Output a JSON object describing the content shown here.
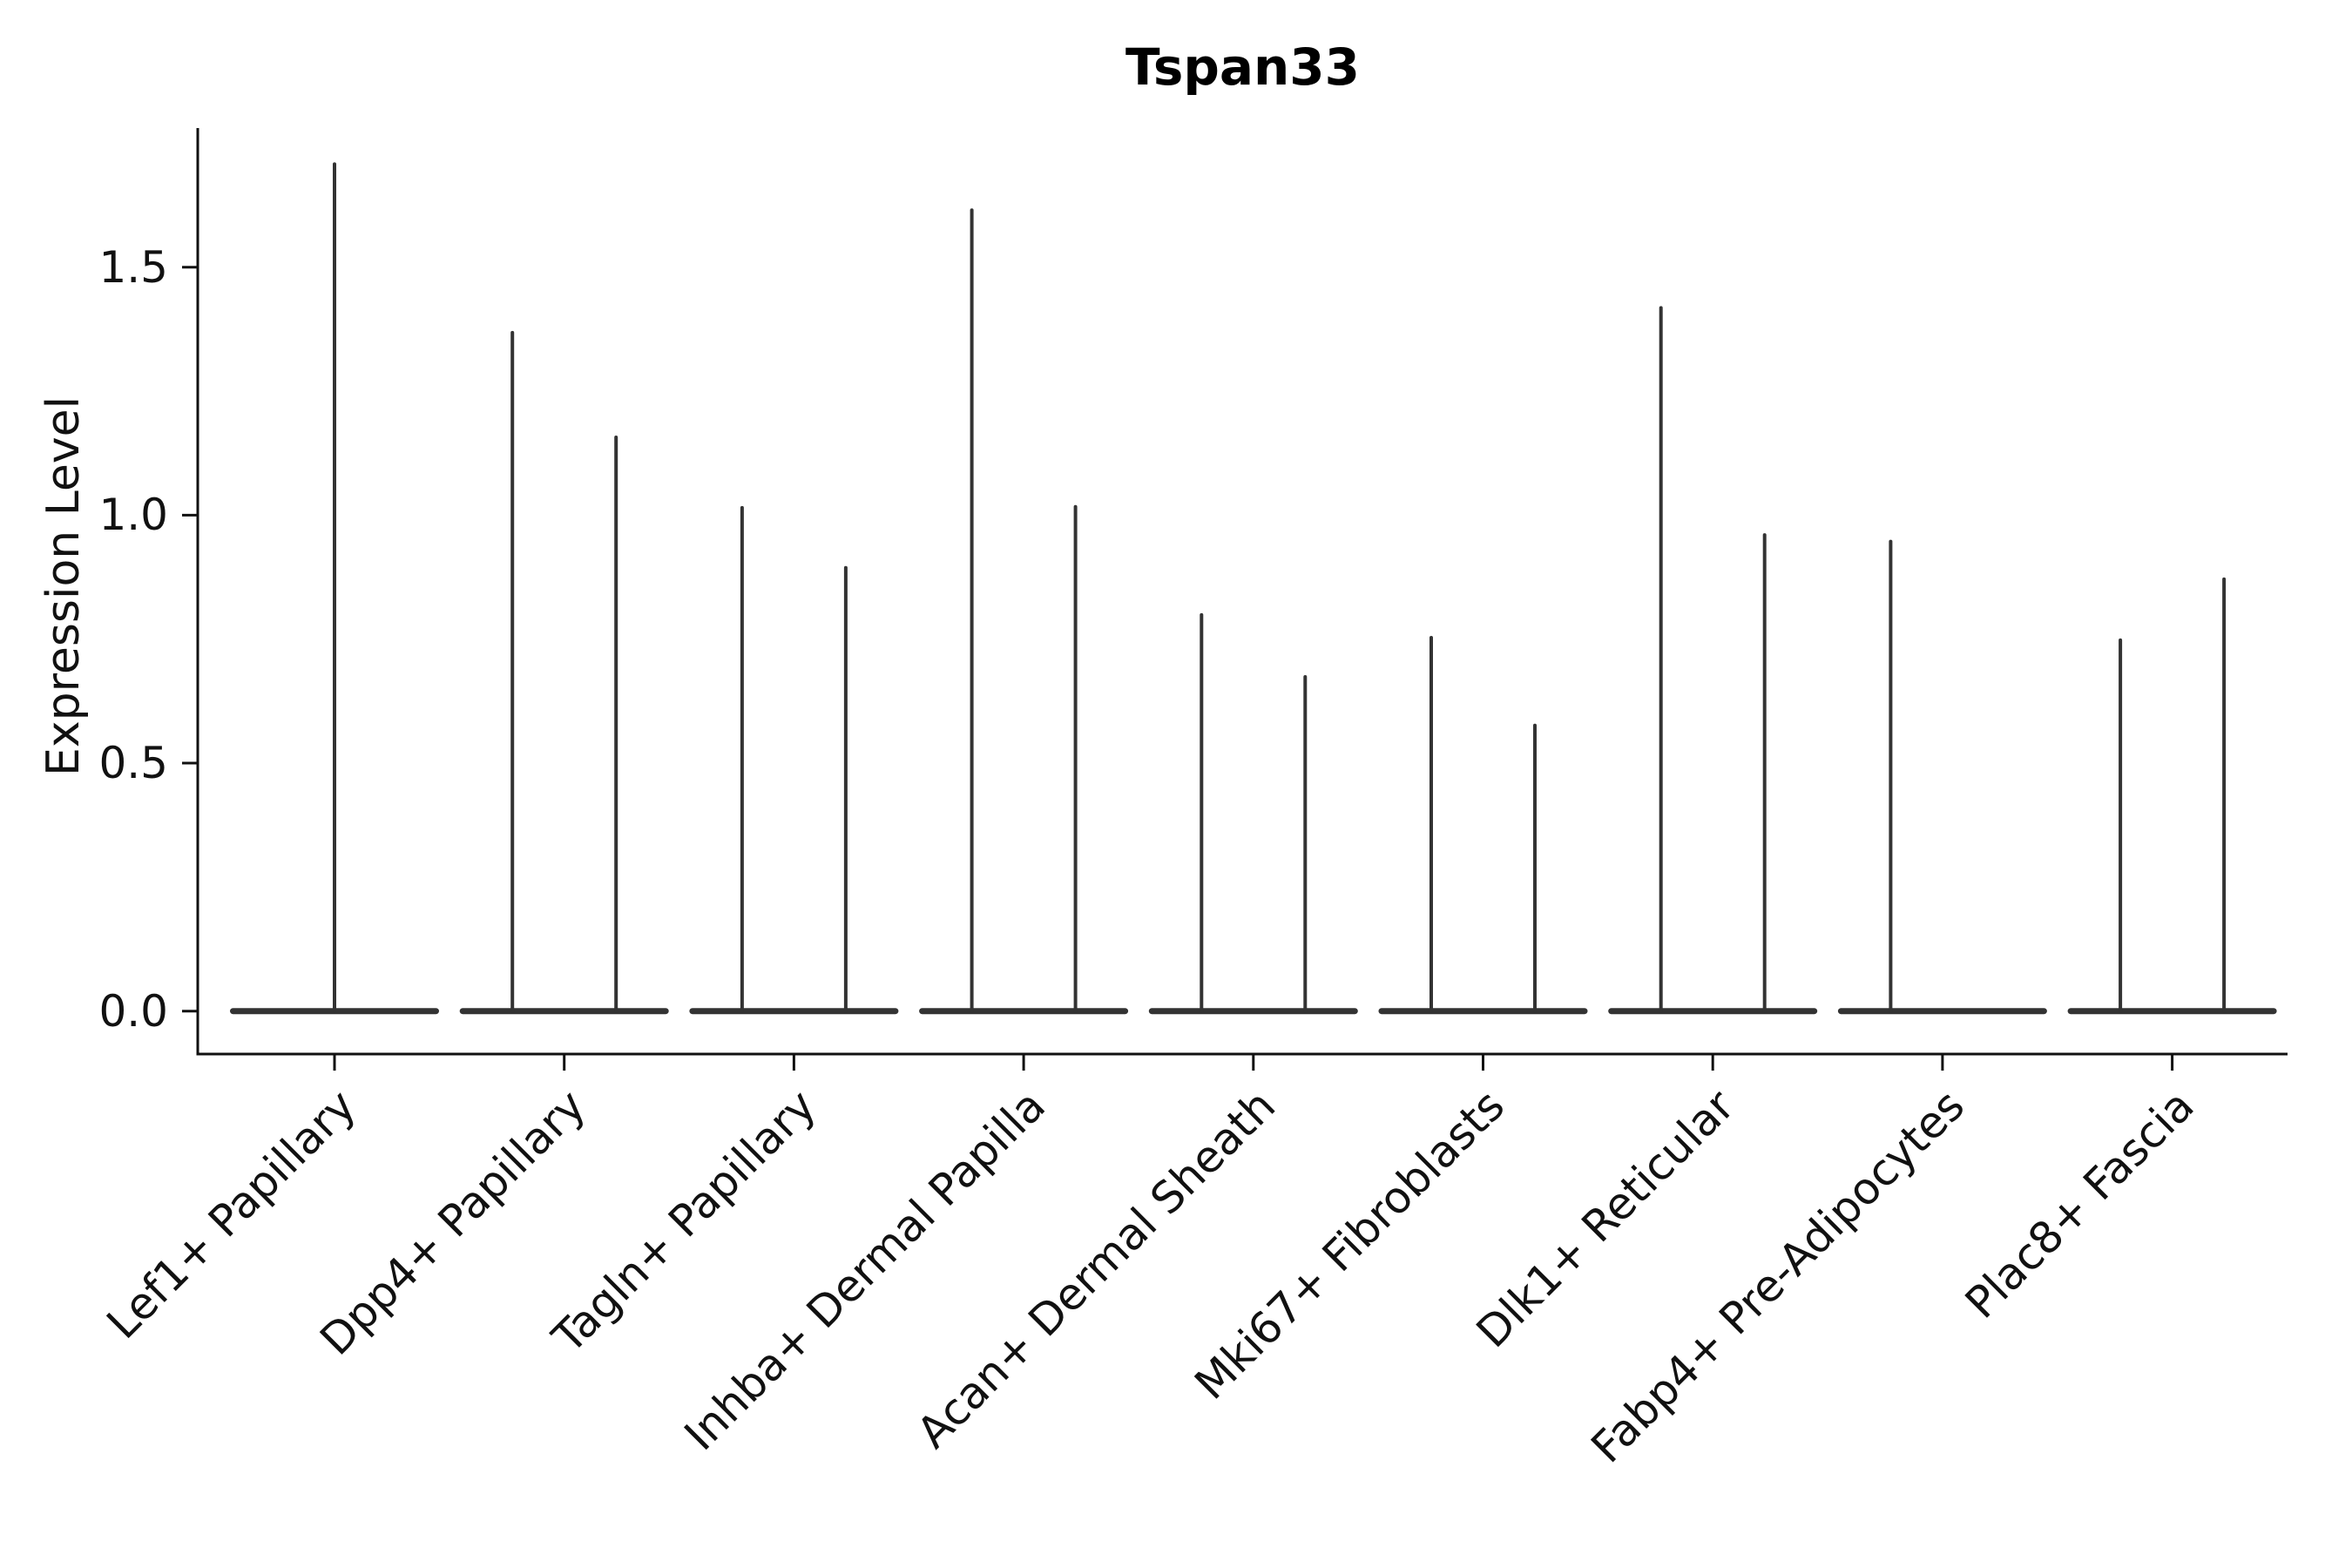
{
  "figure": {
    "title": "Tspan33",
    "background_color": "#ffffff"
  },
  "chart_data": {
    "type": "violin",
    "title": "Tspan33",
    "xlabel": "",
    "ylabel": "Expression Level",
    "ytick_labels": [
      "0.0",
      "0.5",
      "1.0",
      "1.5"
    ],
    "ylim": [
      -0.09,
      1.78
    ],
    "grid": "off",
    "legend": "none",
    "x_tick_rotation_deg": 45,
    "colors": {
      "violin": "#333333",
      "axis": "#111111",
      "text": "#111111",
      "title": "#000000"
    },
    "description": "Sparse expression violins: each violin collapses to a flat density disk at 0 with a thin spike up to the maximum expression value. Categories may contain one centered violin or a left/right pair.",
    "categories": [
      "Lef1+ Papillary",
      "Dpp4+ Papillary",
      "Tagln+ Papillary",
      "Inhba+ Dermal Papilla",
      "Acan+ Dermal Sheath",
      "Mki67+ Fibroblasts",
      "Dlk1+ Reticular",
      "Fabp4+ Pre-Adipocytes",
      "Plac8+ Fascia"
    ],
    "violins": [
      {
        "category": "Lef1+ Papillary",
        "baseline": 0.0,
        "spikes": [
          {
            "slot": "center",
            "max": 1.708
          }
        ]
      },
      {
        "category": "Dpp4+ Papillary",
        "baseline": 0.0,
        "spikes": [
          {
            "slot": "left",
            "max": 1.368
          },
          {
            "slot": "right",
            "max": 1.157
          }
        ]
      },
      {
        "category": "Tagln+ Papillary",
        "baseline": 0.0,
        "spikes": [
          {
            "slot": "left",
            "max": 1.015
          },
          {
            "slot": "right",
            "max": 0.894
          }
        ]
      },
      {
        "category": "Inhba+ Dermal Papilla",
        "baseline": 0.0,
        "spikes": [
          {
            "slot": "left",
            "max": 1.615
          },
          {
            "slot": "right",
            "max": 1.017
          }
        ]
      },
      {
        "category": "Acan+ Dermal Sheath",
        "baseline": 0.0,
        "spikes": [
          {
            "slot": "left",
            "max": 0.799
          },
          {
            "slot": "right",
            "max": 0.674
          }
        ]
      },
      {
        "category": "Mki67+ Fibroblasts",
        "baseline": 0.0,
        "spikes": [
          {
            "slot": "left",
            "max": 0.753
          },
          {
            "slot": "right",
            "max": 0.576
          }
        ]
      },
      {
        "category": "Dlk1+ Reticular",
        "baseline": 0.0,
        "spikes": [
          {
            "slot": "left",
            "max": 1.418
          },
          {
            "slot": "right",
            "max": 0.96
          }
        ]
      },
      {
        "category": "Fabp4+ Pre-Adipocytes",
        "baseline": 0.0,
        "spikes": [
          {
            "slot": "left",
            "max": 0.947
          }
        ]
      },
      {
        "category": "Plac8+ Fascia",
        "baseline": 0.0,
        "spikes": [
          {
            "slot": "left",
            "max": 0.748
          },
          {
            "slot": "right",
            "max": 0.871
          }
        ]
      }
    ]
  }
}
